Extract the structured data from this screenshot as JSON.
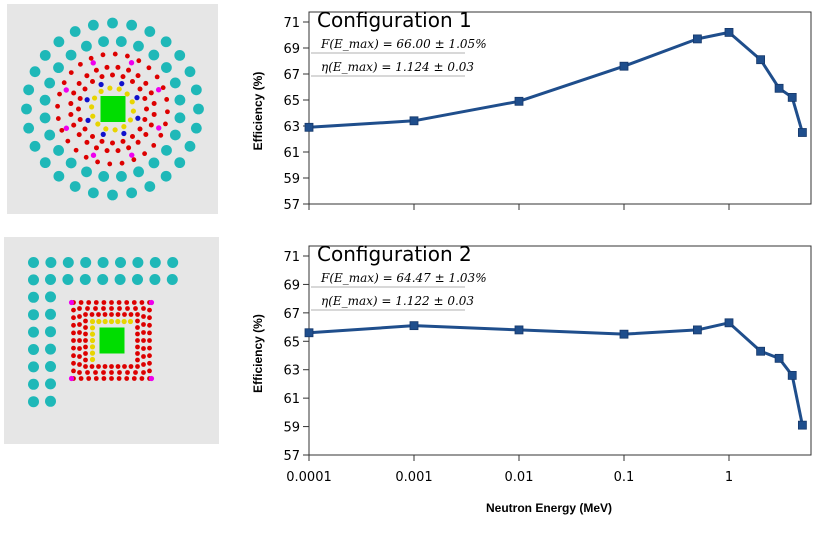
{
  "chart_data": [
    {
      "type": "line",
      "title": "Configuration 1",
      "xlabel": "",
      "ylabel": "Efficiency (%)",
      "x_scale": "log",
      "xlim": [
        0.0001,
        5.5
      ],
      "ylim": [
        57,
        71.5
      ],
      "y_ticks": [
        "57",
        "59",
        "61",
        "63",
        "65",
        "67",
        "69",
        "71"
      ],
      "annotations": [
        "F(E_max) = 66.00 ± 1.05%",
        "η(E_max) = 1.124 ± 0.03"
      ],
      "line_color": "#1f4e8c",
      "x": [
        0.0001,
        0.001,
        0.01,
        0.1,
        0.5,
        1,
        2,
        3,
        4,
        5
      ],
      "y": [
        62.9,
        63.4,
        64.9,
        67.6,
        69.7,
        70.2,
        68.1,
        65.9,
        65.2,
        62.5
      ]
    },
    {
      "type": "line",
      "title": "Configuration 2",
      "xlabel": "Neutron Energy (MeV)",
      "ylabel": "Efficiency (%)",
      "x_scale": "log",
      "xlim": [
        0.0001,
        5.5
      ],
      "ylim": [
        57,
        71.5
      ],
      "y_ticks": [
        "57",
        "59",
        "61",
        "63",
        "65",
        "67",
        "69",
        "71"
      ],
      "x_ticks": [
        "0.0001",
        "0.001",
        "0.01",
        "0.1",
        "1"
      ],
      "annotations": [
        "F(E_max) = 64.47 ± 1.03%",
        "η(E_max) = 1.122 ± 0.03"
      ],
      "line_color": "#1f4e8c",
      "x": [
        0.0001,
        0.001,
        0.01,
        0.1,
        0.5,
        1,
        2,
        3,
        4,
        5
      ],
      "y": [
        65.6,
        66.1,
        65.8,
        65.5,
        65.8,
        66.3,
        64.3,
        63.8,
        62.6,
        59.1
      ]
    }
  ],
  "detector_layouts": [
    {
      "shape": "octagon",
      "background": "#e6e6e6",
      "core_color": "#00dd00",
      "ring_colors": [
        "#e8d400",
        "#1010cc",
        "#dd0000",
        "#ee00ee",
        "#1fb8b8"
      ]
    },
    {
      "shape": "square",
      "background": "#e6e6e6",
      "core_color": "#00dd00",
      "ring_colors": [
        "#e8d400",
        "#dd0000",
        "#ee00ee",
        "#1fb8b8"
      ]
    }
  ]
}
